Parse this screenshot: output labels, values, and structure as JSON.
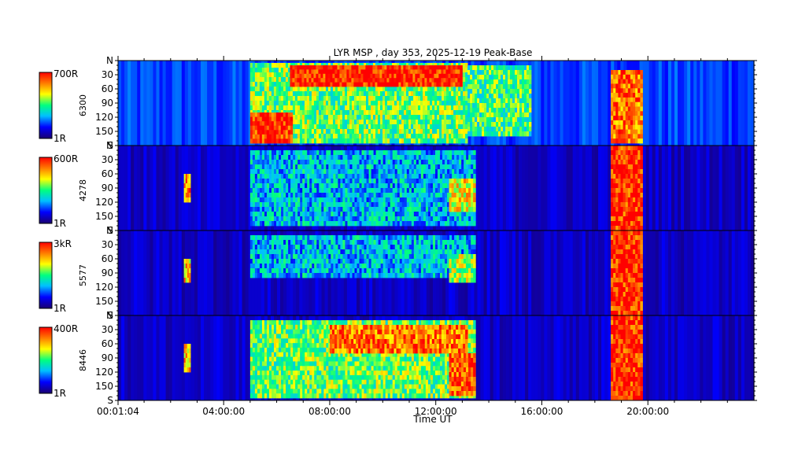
{
  "chart_data": {
    "type": "heatmap",
    "title": "LYR MSP , day 353, 2025-12-19 Peak-Base",
    "xlabel": "Time UT",
    "x_ticks": [
      "00:01:04",
      "04:00:00",
      "08:00:00",
      "12:00:00",
      "16:00:00",
      "20:00:00"
    ],
    "x_range_hours": [
      0.0178,
      24.0
    ],
    "x_tick_hours": [
      0.0178,
      4,
      8,
      12,
      16,
      20
    ],
    "y_range_deg": [
      0,
      180
    ],
    "y_ticks": [
      "N",
      "30",
      "60",
      "90",
      "120",
      "150",
      "S"
    ],
    "y_tick_deg": [
      0,
      30,
      60,
      90,
      120,
      150,
      180
    ],
    "colormap": [
      "#1a0070",
      "#0000ff",
      "#00c0ff",
      "#00ff80",
      "#ffff00",
      "#ff8000",
      "#ff0000"
    ],
    "panels": [
      {
        "cbar_max": "700R",
        "cbar_min": "1R",
        "channel": "6300",
        "events": [
          {
            "t0": 5.0,
            "t1": 13.2,
            "d0": 5,
            "d1": 175,
            "level": 0.55
          },
          {
            "t0": 5.0,
            "t1": 6.6,
            "d0": 110,
            "d1": 175,
            "level": 0.95
          },
          {
            "t0": 6.5,
            "t1": 13.0,
            "d0": 10,
            "d1": 55,
            "level": 0.97
          },
          {
            "t0": 13.2,
            "t1": 15.6,
            "d0": 10,
            "d1": 160,
            "level": 0.5
          },
          {
            "t0": 18.6,
            "t1": 19.8,
            "d0": 20,
            "d1": 175,
            "level": 0.85
          }
        ]
      },
      {
        "cbar_max": "600R",
        "cbar_min": "1R",
        "channel": "4278",
        "events": [
          {
            "t0": 2.5,
            "t1": 2.75,
            "d0": 60,
            "d1": 120,
            "level": 0.8
          },
          {
            "t0": 5.0,
            "t1": 13.5,
            "d0": 10,
            "d1": 170,
            "level": 0.35
          },
          {
            "t0": 12.5,
            "t1": 13.5,
            "d0": 70,
            "d1": 140,
            "level": 0.7
          },
          {
            "t0": 18.6,
            "t1": 19.8,
            "d0": 0,
            "d1": 180,
            "level": 0.95
          }
        ]
      },
      {
        "cbar_max": "3kR",
        "cbar_min": "1R",
        "channel": "5577",
        "events": [
          {
            "t0": 2.5,
            "t1": 2.75,
            "d0": 60,
            "d1": 110,
            "level": 0.75
          },
          {
            "t0": 5.0,
            "t1": 13.5,
            "d0": 10,
            "d1": 100,
            "level": 0.35
          },
          {
            "t0": 12.5,
            "t1": 13.5,
            "d0": 50,
            "d1": 110,
            "level": 0.6
          },
          {
            "t0": 18.6,
            "t1": 19.8,
            "d0": 0,
            "d1": 180,
            "level": 0.95
          }
        ]
      },
      {
        "cbar_max": "400R",
        "cbar_min": "1R",
        "channel": "8446",
        "events": [
          {
            "t0": 2.5,
            "t1": 2.75,
            "d0": 60,
            "d1": 120,
            "level": 0.75
          },
          {
            "t0": 5.0,
            "t1": 13.5,
            "d0": 10,
            "d1": 175,
            "level": 0.55
          },
          {
            "t0": 8.0,
            "t1": 13.2,
            "d0": 20,
            "d1": 80,
            "level": 0.85
          },
          {
            "t0": 12.5,
            "t1": 13.5,
            "d0": 80,
            "d1": 170,
            "level": 0.9
          },
          {
            "t0": 18.6,
            "t1": 19.8,
            "d0": 0,
            "d1": 180,
            "level": 0.95
          }
        ]
      }
    ]
  }
}
